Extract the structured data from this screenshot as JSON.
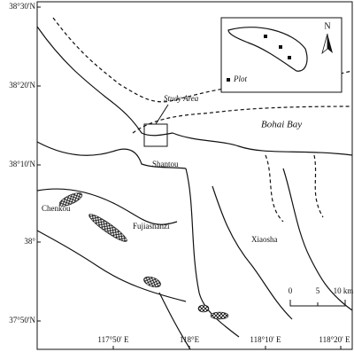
{
  "map": {
    "lat_labels": [
      "38°30'N",
      "38°20'N",
      "38°10'N",
      "38°",
      "37°50'N"
    ],
    "lon_labels": [
      "117°50' E",
      "118°E",
      "118°10' E",
      "118°20' E"
    ],
    "places": {
      "study_area": "Study Area",
      "bay": "Bohai Bay",
      "shantou": "Shantou",
      "chenkou": "Chenkou",
      "fujiashanzi": "Fujiashanzi",
      "xiaosha": "Xiaosha"
    },
    "inset": {
      "north": "N",
      "legend": "Plot"
    },
    "scale": {
      "zero": "0",
      "mid": "5",
      "end": "10 km"
    }
  }
}
